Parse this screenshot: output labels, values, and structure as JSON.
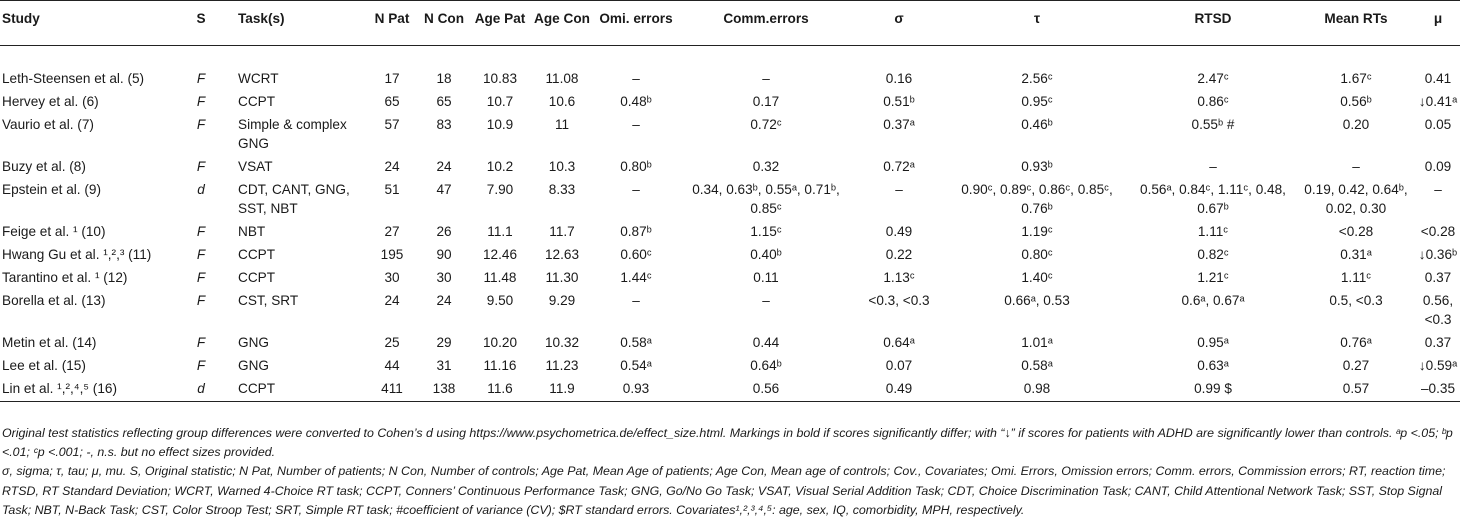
{
  "headers": [
    "Study",
    "S",
    "Task(s)",
    "N Pat",
    "N Con",
    "Age Pat",
    "Age Con",
    "Omi. errors",
    "Comm.errors",
    "σ",
    "τ",
    "RTSD",
    "Mean RTs",
    "μ"
  ],
  "rows": [
    {
      "study": "Leth-Steensen et al. (5)",
      "s": "F",
      "task": "WCRT",
      "npat": "17",
      "ncon": "18",
      "agepat": "10.83",
      "agecon": "11.08",
      "omi": "–",
      "comm": "–",
      "sigma": "0.16",
      "tau": "2.56ᶜ",
      "rtsd": "2.47ᶜ",
      "mrt": "1.67ᶜ",
      "mu": "0.41"
    },
    {
      "study": "Hervey et al. (6)",
      "s": "F",
      "task": "CCPT",
      "npat": "65",
      "ncon": "65",
      "agepat": "10.7",
      "agecon": "10.6",
      "omi": "0.48ᵇ",
      "comm": "0.17",
      "sigma": "0.51ᵇ",
      "tau": "0.95ᶜ",
      "rtsd": "0.86ᶜ",
      "mrt": "0.56ᵇ",
      "mu": "↓0.41ᵃ"
    },
    {
      "study": "Vaurio et al. (7)",
      "s": "F",
      "task": "Simple & complex GNG",
      "npat": "57",
      "ncon": "83",
      "agepat": "10.9",
      "agecon": "11",
      "omi": "–",
      "comm": "0.72ᶜ",
      "sigma": "0.37ᵃ",
      "tau": "0.46ᵇ",
      "rtsd": "0.55ᵇ #",
      "mrt": "0.20",
      "mu": "0.05"
    },
    {
      "study": "Buzy et al. (8)",
      "s": "F",
      "task": "VSAT",
      "npat": "24",
      "ncon": "24",
      "agepat": "10.2",
      "agecon": "10.3",
      "omi": "0.80ᵇ",
      "comm": "0.32",
      "sigma": "0.72ᵃ",
      "tau": "0.93ᵇ",
      "rtsd": "–",
      "mrt": "–",
      "mu": "0.09"
    },
    {
      "study": "Epstein et al. (9)",
      "s": "d",
      "task": "CDT, CANT, GNG, SST, NBT",
      "npat": "51",
      "ncon": "47",
      "agepat": "7.90",
      "agecon": "8.33",
      "omi": "–",
      "comm": "0.34, 0.63ᵇ, 0.55ᵃ, 0.71ᵇ, 0.85ᶜ",
      "sigma": "–",
      "tau": "0.90ᶜ, 0.89ᶜ, 0.86ᶜ, 0.85ᶜ, 0.76ᵇ",
      "rtsd": "0.56ᵃ, 0.84ᶜ, 1.11ᶜ, 0.48, 0.67ᵇ",
      "mrt": "0.19, 0.42, 0.64ᵇ, 0.02, 0.30",
      "mu": "–"
    },
    {
      "study": "Feige et al. ¹ (10)",
      "s": "F",
      "task": "NBT",
      "npat": "27",
      "ncon": "26",
      "agepat": "11.1",
      "agecon": "11.7",
      "omi": "0.87ᵇ",
      "comm": "1.15ᶜ",
      "sigma": "0.49",
      "tau": "1.19ᶜ",
      "rtsd": "1.11ᶜ",
      "mrt": "<0.28",
      "mu": "<0.28"
    },
    {
      "study": "Hwang Gu et al. ¹,²,³ (11)",
      "s": "F",
      "task": "CCPT",
      "npat": "195",
      "ncon": "90",
      "agepat": "12.46",
      "agecon": "12.63",
      "omi": "0.60ᶜ",
      "comm": "0.40ᵇ",
      "sigma": "0.22",
      "tau": "0.80ᶜ",
      "rtsd": "0.82ᶜ",
      "mrt": "0.31ᵃ",
      "mu": "↓0.36ᵇ"
    },
    {
      "study": "Tarantino et al. ¹ (12)",
      "s": "F",
      "task": "CCPT",
      "npat": "30",
      "ncon": "30",
      "agepat": "11.48",
      "agecon": "11.30",
      "omi": "1.44ᶜ",
      "comm": "0.11",
      "sigma": "1.13ᶜ",
      "tau": "1.40ᶜ",
      "rtsd": "1.21ᶜ",
      "mrt": "1.11ᶜ",
      "mu": "0.37"
    },
    {
      "study": "Borella et al. (13)",
      "s": "F",
      "task": "CST, SRT",
      "npat": "24",
      "ncon": "24",
      "agepat": "9.50",
      "agecon": "9.29",
      "omi": "–",
      "comm": "–",
      "sigma": "<0.3, <0.3",
      "tau": "0.66ᵃ, 0.53",
      "rtsd": "0.6ᵃ, 0.67ᵃ",
      "mrt": "0.5, <0.3",
      "mu": "0.56, <0.3"
    },
    {
      "study": "Metin et al. (14)",
      "s": "F",
      "task": "GNG",
      "npat": "25",
      "ncon": "29",
      "agepat": "10.20",
      "agecon": "10.32",
      "omi": "0.58ᵃ",
      "comm": "0.44",
      "sigma": "0.64ᵃ",
      "tau": "1.01ᵃ",
      "rtsd": "0.95ᵃ",
      "mrt": "0.76ᵃ",
      "mu": "0.37"
    },
    {
      "study": "Lee et al. (15)",
      "s": "F",
      "task": "GNG",
      "npat": "44",
      "ncon": "31",
      "agepat": "11.16",
      "agecon": "11.23",
      "omi": "0.54ᵃ",
      "comm": "0.64ᵇ",
      "sigma": "0.07",
      "tau": "0.58ᵃ",
      "rtsd": "0.63ᵃ",
      "mrt": "0.27",
      "mu": "↓0.59ᵃ"
    },
    {
      "study": "Lin et al. ¹,²,⁴,⁵ (16)",
      "s": "d",
      "task": "CCPT",
      "npat": "411",
      "ncon": "138",
      "agepat": "11.6",
      "agecon": "11.9",
      "omi": "0.93",
      "comm": "0.56",
      "sigma": "0.49",
      "tau": "0.98",
      "rtsd": "0.99 $",
      "mrt": "0.57",
      "mu": "–0.35"
    }
  ],
  "notes": [
    "Original test statistics reflecting group differences were converted to Cohen’s d using https://www.psychometrica.de/effect_size.html. Markings in bold if scores significantly differ; with “↓” if scores for patients with ADHD are significantly lower than controls. ᵃp <.05; ᵇp <.01; ᶜp <.001; -, n.s. but no effect sizes provided.",
    "σ, sigma; τ, tau; μ, mu. S, Original statistic; N Pat, Number of patients; N Con, Number of controls; Age Pat, Mean Age of patients; Age Con, Mean age of controls; Cov., Covariates; Omi. Errors, Omission errors; Comm. errors, Commission errors; RT, reaction time; RTSD, RT Standard Deviation; WCRT, Warned 4-Choice RT task; CCPT, Conners’ Continuous Performance Task; GNG, Go/No Go Task; VSAT, Visual Serial Addition Task; CDT, Choice Discrimination Task; CANT, Child Attentional Network Task; SST, Stop Signal Task; NBT, N-Back Task; CST, Color Stroop Test; SRT, Simple RT task; #coefficient of variance (CV); $RT standard errors. Covariates¹,²,³,⁴,⁵: age, sex, IQ, comorbidity, MPH, respectively."
  ]
}
